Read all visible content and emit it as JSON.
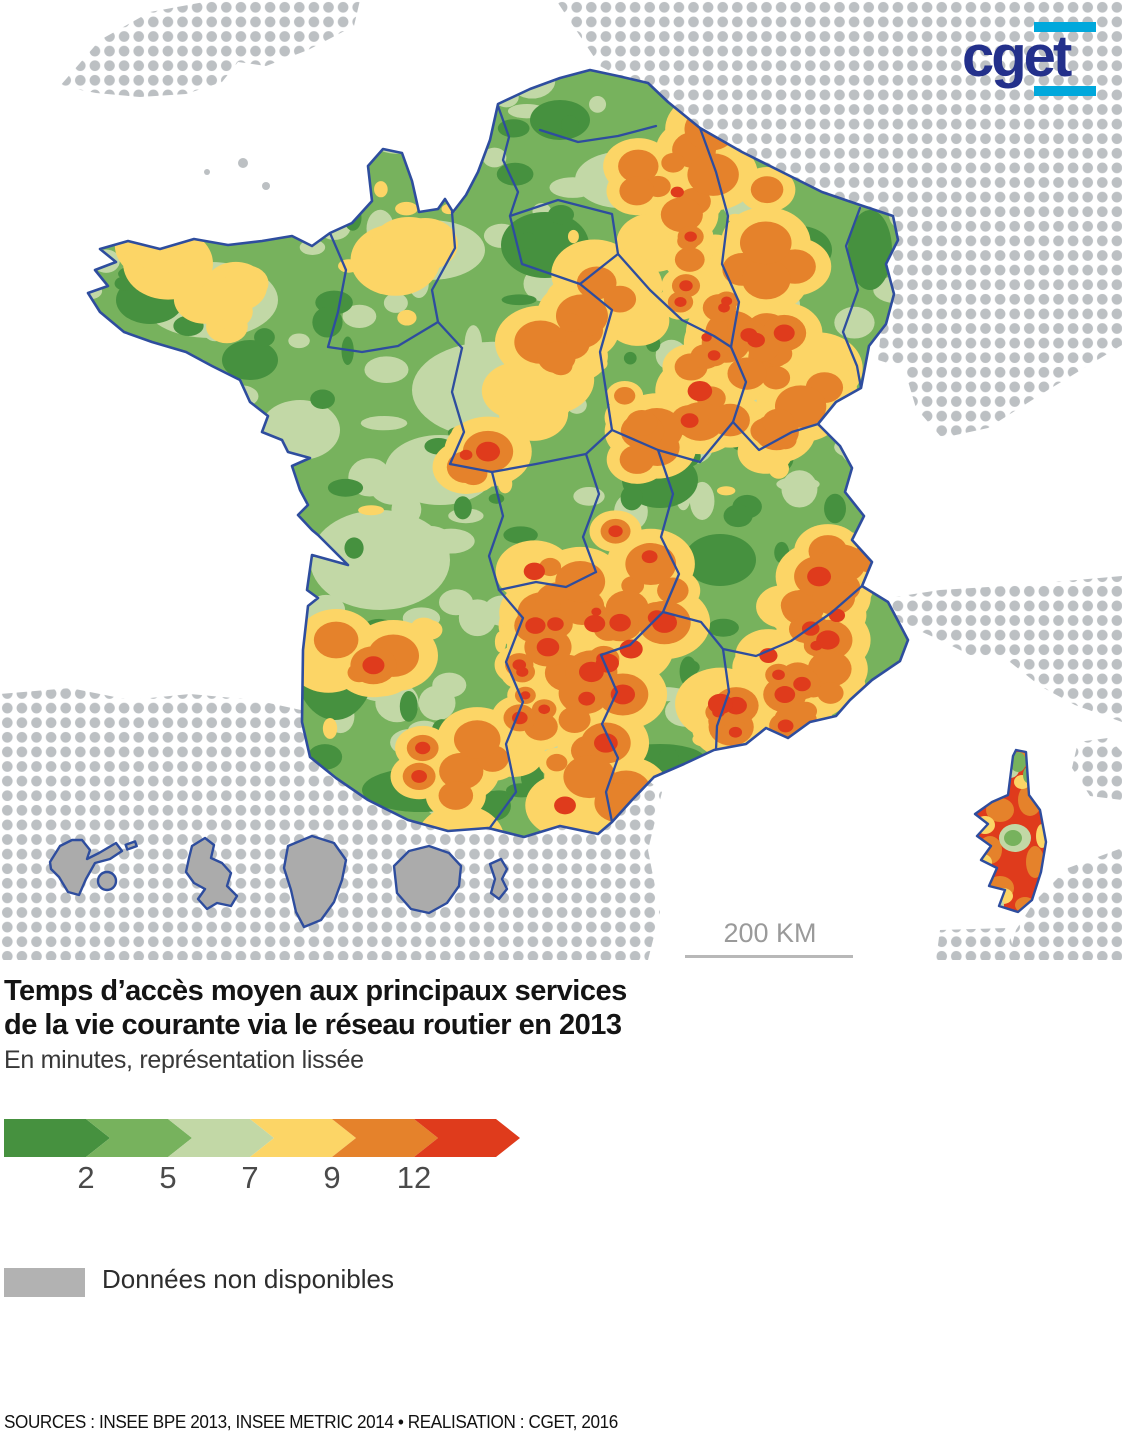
{
  "logo": {
    "text": "cget",
    "color": "#23308b",
    "accent": "#00a8dc"
  },
  "map": {
    "scale_label": "200 KM",
    "dot_color": "#bcc0c3",
    "border_color": "#2e4d9e",
    "no_data_fill": "#ababab",
    "sea": "#ffffff"
  },
  "title": {
    "line1": "Temps d’accès moyen aux principaux services",
    "line2": "de la vie courante via le réseau routier en 2013",
    "subtitle": "En minutes, représentation lissée"
  },
  "legend": {
    "labels": [
      "2",
      "5",
      "7",
      "9",
      "12"
    ],
    "colors": [
      "#46913f",
      "#77b25d",
      "#c2d8a6",
      "#fcd566",
      "#e5822b",
      "#df3b1c"
    ],
    "no_data_label": "Données non disponibles",
    "no_data_color": "#b2b2b2"
  },
  "footer": {
    "sources": "SOURCES : INSEE BPE 2013, INSEE METRIC 2014 • REALISATION : CGET, 2016"
  }
}
